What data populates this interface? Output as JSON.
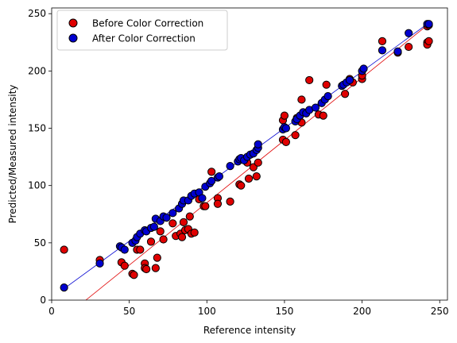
{
  "chart_data": {
    "type": "scatter",
    "title": "",
    "xlabel": "Reference intensity",
    "ylabel": "Predicted/Measured intensity",
    "xlim": [
      0,
      255
    ],
    "ylim": [
      0,
      255
    ],
    "xticks": [
      0,
      50,
      100,
      150,
      200,
      250
    ],
    "yticks": [
      0,
      50,
      100,
      150,
      200,
      250
    ],
    "grid": false,
    "legend": "top-left",
    "series": [
      {
        "name": "Before Color Correction",
        "color": "#e00000",
        "fit_line": [
          [
            22,
            0
          ],
          [
            243,
            241
          ]
        ],
        "points": [
          [
            8,
            44
          ],
          [
            31,
            35
          ],
          [
            45,
            33
          ],
          [
            47,
            30
          ],
          [
            52,
            23
          ],
          [
            53,
            22
          ],
          [
            55,
            44
          ],
          [
            57,
            44
          ],
          [
            60,
            32
          ],
          [
            60,
            28
          ],
          [
            61,
            27
          ],
          [
            64,
            51
          ],
          [
            67,
            28
          ],
          [
            68,
            37
          ],
          [
            70,
            60
          ],
          [
            72,
            53
          ],
          [
            78,
            67
          ],
          [
            80,
            56
          ],
          [
            83,
            58
          ],
          [
            84,
            55
          ],
          [
            85,
            68
          ],
          [
            86,
            61
          ],
          [
            88,
            62
          ],
          [
            89,
            73
          ],
          [
            90,
            58
          ],
          [
            92,
            59
          ],
          [
            95,
            88
          ],
          [
            98,
            82
          ],
          [
            99,
            82
          ],
          [
            103,
            112
          ],
          [
            107,
            89
          ],
          [
            107,
            84
          ],
          [
            115,
            86
          ],
          [
            121,
            101
          ],
          [
            122,
            100
          ],
          [
            126,
            120
          ],
          [
            127,
            106
          ],
          [
            130,
            116
          ],
          [
            132,
            108
          ],
          [
            133,
            120
          ],
          [
            149,
            140
          ],
          [
            149,
            157
          ],
          [
            150,
            161
          ],
          [
            151,
            138
          ],
          [
            157,
            144
          ],
          [
            158,
            159
          ],
          [
            161,
            155
          ],
          [
            161,
            175
          ],
          [
            166,
            192
          ],
          [
            172,
            162
          ],
          [
            175,
            161
          ],
          [
            177,
            188
          ],
          [
            189,
            180
          ],
          [
            192,
            193
          ],
          [
            194,
            190
          ],
          [
            200,
            193
          ],
          [
            200,
            196
          ],
          [
            213,
            226
          ],
          [
            223,
            216
          ],
          [
            230,
            221
          ],
          [
            242,
            225
          ],
          [
            242,
            223
          ],
          [
            243,
            226
          ],
          [
            242,
            239
          ],
          [
            243,
            240
          ]
        ]
      },
      {
        "name": "After Color Correction",
        "color": "#0000d0",
        "fit_line": [
          [
            8,
            10
          ],
          [
            243,
            242
          ]
        ],
        "points": [
          [
            8,
            11
          ],
          [
            31,
            32
          ],
          [
            44,
            47
          ],
          [
            45,
            46
          ],
          [
            47,
            44
          ],
          [
            52,
            50
          ],
          [
            54,
            52
          ],
          [
            55,
            55
          ],
          [
            57,
            58
          ],
          [
            60,
            61
          ],
          [
            61,
            60
          ],
          [
            64,
            63
          ],
          [
            66,
            64
          ],
          [
            67,
            71
          ],
          [
            70,
            69
          ],
          [
            72,
            73
          ],
          [
            74,
            72
          ],
          [
            78,
            76
          ],
          [
            82,
            80
          ],
          [
            84,
            84
          ],
          [
            85,
            87
          ],
          [
            88,
            87
          ],
          [
            90,
            91
          ],
          [
            92,
            93
          ],
          [
            95,
            94
          ],
          [
            97,
            89
          ],
          [
            99,
            99
          ],
          [
            102,
            102
          ],
          [
            103,
            104
          ],
          [
            107,
            107
          ],
          [
            108,
            108
          ],
          [
            115,
            117
          ],
          [
            120,
            121
          ],
          [
            121,
            123
          ],
          [
            122,
            124
          ],
          [
            124,
            122
          ],
          [
            126,
            125
          ],
          [
            128,
            127
          ],
          [
            130,
            128
          ],
          [
            132,
            131
          ],
          [
            133,
            133
          ],
          [
            133,
            136
          ],
          [
            149,
            149
          ],
          [
            150,
            151
          ],
          [
            151,
            150
          ],
          [
            157,
            156
          ],
          [
            158,
            158
          ],
          [
            160,
            161
          ],
          [
            162,
            164
          ],
          [
            164,
            163
          ],
          [
            166,
            166
          ],
          [
            170,
            168
          ],
          [
            174,
            172
          ],
          [
            176,
            175
          ],
          [
            178,
            178
          ],
          [
            187,
            187
          ],
          [
            188,
            188
          ],
          [
            190,
            190
          ],
          [
            192,
            192
          ],
          [
            200,
            200
          ],
          [
            201,
            202
          ],
          [
            213,
            218
          ],
          [
            223,
            217
          ],
          [
            230,
            233
          ],
          [
            242,
            241
          ],
          [
            243,
            241
          ]
        ]
      }
    ]
  }
}
